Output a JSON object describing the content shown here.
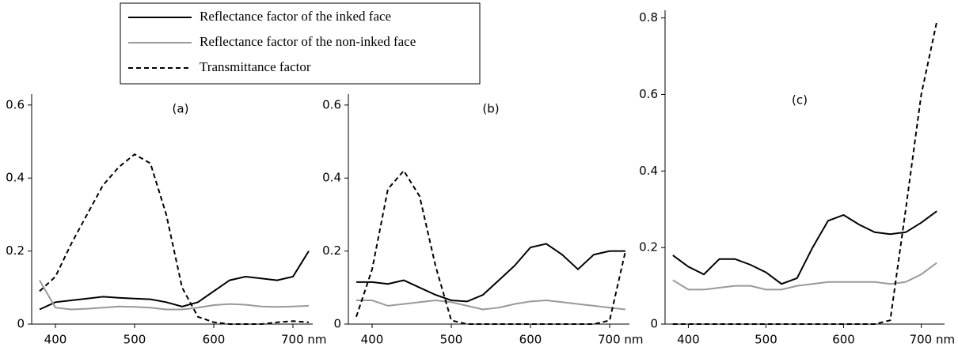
{
  "chart_data": [
    {
      "type": "line",
      "title": "(a)",
      "x": [
        380,
        400,
        420,
        440,
        460,
        480,
        500,
        520,
        540,
        560,
        580,
        600,
        620,
        640,
        660,
        680,
        700,
        720
      ],
      "series": [
        {
          "name": "Reflectance factor of the inked face",
          "color": "#000000",
          "dashed": false,
          "values": [
            0.04,
            0.06,
            0.065,
            0.07,
            0.075,
            0.072,
            0.07,
            0.068,
            0.06,
            0.048,
            0.06,
            0.09,
            0.12,
            0.13,
            0.125,
            0.12,
            0.13,
            0.2
          ]
        },
        {
          "name": "Reflectance factor  of the non-inked face",
          "color": "#999999",
          "dashed": false,
          "values": [
            0.12,
            0.045,
            0.04,
            0.042,
            0.045,
            0.048,
            0.047,
            0.045,
            0.04,
            0.04,
            0.045,
            0.052,
            0.055,
            0.053,
            0.048,
            0.047,
            0.048,
            0.05
          ]
        },
        {
          "name": "Transmittance factor",
          "color": "#000000",
          "dashed": true,
          "values": [
            0.09,
            0.13,
            0.22,
            0.3,
            0.38,
            0.43,
            0.465,
            0.44,
            0.3,
            0.1,
            0.02,
            0.005,
            0,
            0,
            0,
            0.005,
            0.008,
            0.005
          ]
        }
      ],
      "xlim": [
        370,
        725
      ],
      "xticks": [
        400,
        500,
        600,
        {
          "value": 700,
          "label": "700 nm"
        }
      ],
      "ylim": [
        0,
        0.63
      ],
      "yticks": [
        0,
        0.2,
        0.4,
        0.6
      ]
    },
    {
      "type": "line",
      "title": "(b)",
      "x": [
        380,
        400,
        420,
        440,
        460,
        480,
        500,
        520,
        540,
        560,
        580,
        600,
        620,
        640,
        660,
        680,
        700,
        720
      ],
      "series": [
        {
          "color": "#000000",
          "dashed": false,
          "values": [
            0.115,
            0.115,
            0.11,
            0.12,
            0.1,
            0.08,
            0.065,
            0.062,
            0.08,
            0.12,
            0.16,
            0.21,
            0.22,
            0.19,
            0.15,
            0.19,
            0.2,
            0.2
          ]
        },
        {
          "color": "#999999",
          "dashed": false,
          "values": [
            0.065,
            0.065,
            0.05,
            0.055,
            0.06,
            0.065,
            0.06,
            0.05,
            0.04,
            0.045,
            0.055,
            0.062,
            0.065,
            0.06,
            0.055,
            0.05,
            0.045,
            0.04
          ]
        },
        {
          "color": "#000000",
          "dashed": true,
          "values": [
            0.02,
            0.15,
            0.37,
            0.42,
            0.35,
            0.16,
            0.01,
            0,
            0,
            0,
            0,
            0,
            0,
            0,
            0,
            0,
            0.01,
            0.2
          ]
        }
      ],
      "xlim": [
        370,
        725
      ],
      "xticks": [
        400,
        500,
        600,
        {
          "value": 700,
          "label": "700 nm"
        }
      ],
      "ylim": [
        0,
        0.63
      ],
      "yticks": [
        0,
        0.2,
        0.4,
        0.6
      ]
    },
    {
      "type": "line",
      "title": "(c)",
      "x": [
        380,
        400,
        420,
        440,
        460,
        480,
        500,
        520,
        540,
        560,
        580,
        600,
        620,
        640,
        660,
        680,
        700,
        720
      ],
      "series": [
        {
          "color": "#000000",
          "dashed": false,
          "values": [
            0.18,
            0.15,
            0.13,
            0.17,
            0.17,
            0.155,
            0.135,
            0.105,
            0.12,
            0.2,
            0.27,
            0.285,
            0.26,
            0.24,
            0.235,
            0.24,
            0.265,
            0.295
          ]
        },
        {
          "color": "#999999",
          "dashed": false,
          "values": [
            0.115,
            0.09,
            0.09,
            0.095,
            0.1,
            0.1,
            0.09,
            0.09,
            0.1,
            0.105,
            0.11,
            0.11,
            0.11,
            0.11,
            0.105,
            0.11,
            0.13,
            0.16
          ]
        },
        {
          "color": "#000000",
          "dashed": true,
          "values": [
            0,
            0,
            0,
            0,
            0,
            0,
            0,
            0,
            0,
            0,
            0,
            0,
            0,
            0,
            0.01,
            0.3,
            0.6,
            0.79
          ]
        }
      ],
      "xlim": [
        370,
        730
      ],
      "xticks": [
        400,
        500,
        600,
        {
          "value": 700,
          "label": "700 nm"
        }
      ],
      "ylim": [
        0,
        0.82
      ],
      "yticks": [
        0,
        0.2,
        0.4,
        0.6,
        0.8
      ]
    }
  ]
}
